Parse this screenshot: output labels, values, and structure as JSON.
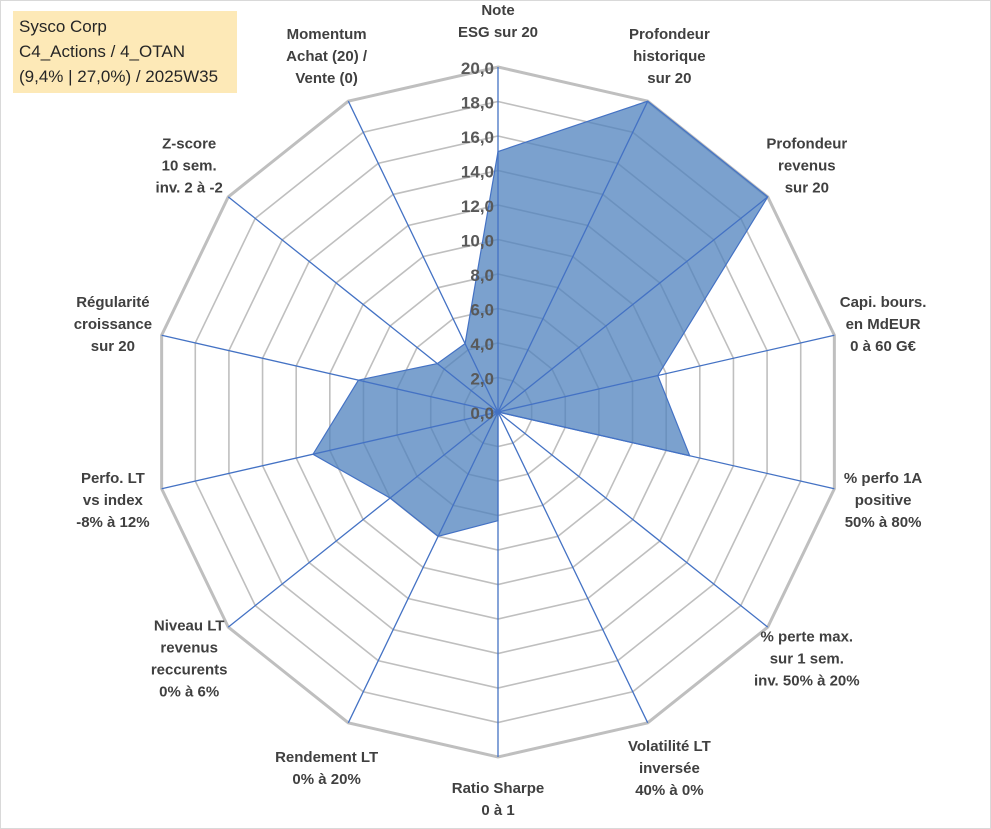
{
  "info_box": {
    "line1": "Sysco Corp",
    "line2": "C4_Actions / 4_OTAN",
    "line3": "(9,4% | 27,0%) / 2025W35"
  },
  "chart_data": {
    "type": "radar",
    "title": "",
    "rmin": 0,
    "rmax": 20,
    "tick_step": 2,
    "ticks": [
      "0,0",
      "2,0",
      "4,0",
      "6,0",
      "8,0",
      "10,0",
      "12,0",
      "14,0",
      "16,0",
      "18,0",
      "20,0"
    ],
    "categories": [
      [
        "Note",
        "ESG sur 20"
      ],
      [
        "Profondeur",
        "historique",
        "sur 20"
      ],
      [
        "Profondeur",
        "revenus",
        "sur 20"
      ],
      [
        "Capi. bours.",
        "en MdEUR",
        "0 à 60 G€"
      ],
      [
        "% perfo 1A",
        "positive",
        "50% à 80%"
      ],
      [
        "% perte max.",
        "sur 1 sem.",
        "inv. 50% à 20%"
      ],
      [
        "Volatilité LT",
        "inversée",
        "40% à 0%"
      ],
      [
        "Ratio Sharpe",
        "0 à 1"
      ],
      [
        "Rendement LT",
        "0% à 20%"
      ],
      [
        "Niveau LT",
        "revenus",
        "reccurents",
        "0% à 6%"
      ],
      [
        "Perfo. LT",
        "vs index",
        "-8% à 12%"
      ],
      [
        "Régularité",
        "croissance",
        "sur 20"
      ],
      [
        "Z-score",
        "10 sem.",
        "inv. 2 à -2"
      ],
      [
        "Momentum",
        "Achat (20) /",
        "Vente (0)"
      ]
    ],
    "series": [
      {
        "values": [
          15.1,
          20.0,
          20.0,
          9.5,
          11.4,
          0,
          0,
          6.3,
          8.0,
          8.0,
          11.0,
          8.3,
          4.5,
          4.4
        ],
        "fill": "#4f81bd",
        "fill_opacity": 0.75,
        "stroke": "#4472c4"
      }
    ],
    "grid": true,
    "grid_color": "#bfbfbf",
    "spoke_color": "#4472c4"
  }
}
